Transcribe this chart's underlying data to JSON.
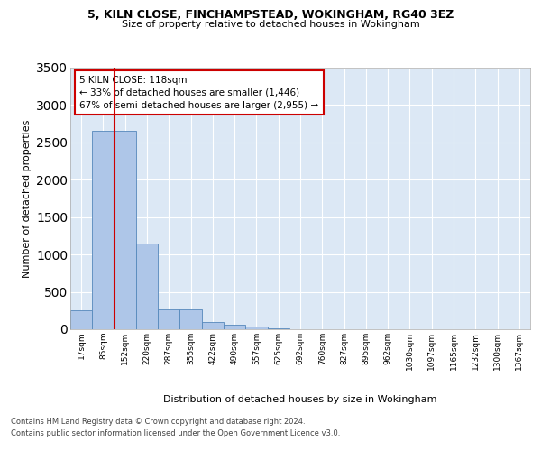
{
  "title1": "5, KILN CLOSE, FINCHAMPSTEAD, WOKINGHAM, RG40 3EZ",
  "title2": "Size of property relative to detached houses in Wokingham",
  "xlabel": "Distribution of detached houses by size in Wokingham",
  "ylabel": "Number of detached properties",
  "bar_labels": [
    "17sqm",
    "85sqm",
    "152sqm",
    "220sqm",
    "287sqm",
    "355sqm",
    "422sqm",
    "490sqm",
    "557sqm",
    "625sqm",
    "692sqm",
    "760sqm",
    "827sqm",
    "895sqm",
    "962sqm",
    "1030sqm",
    "1097sqm",
    "1165sqm",
    "1232sqm",
    "1300sqm",
    "1367sqm"
  ],
  "bar_heights": [
    250,
    2650,
    2650,
    1150,
    270,
    270,
    100,
    60,
    40,
    8,
    5,
    4,
    3,
    3,
    2,
    2,
    2,
    2,
    2,
    2,
    2
  ],
  "bar_color": "#aec6e8",
  "bar_edge_color": "#5588bb",
  "background_color": "#dce8f5",
  "grid_color": "#ffffff",
  "vline_color": "#cc0000",
  "annotation_line1": "5 KILN CLOSE: 118sqm",
  "annotation_line2": "← 33% of detached houses are smaller (1,446)",
  "annotation_line3": "67% of semi-detached houses are larger (2,955) →",
  "annotation_box_facecolor": "#ffffff",
  "annotation_box_edgecolor": "#cc0000",
  "ylim": [
    0,
    3500
  ],
  "yticks": [
    0,
    500,
    1000,
    1500,
    2000,
    2500,
    3000,
    3500
  ],
  "footer1": "Contains HM Land Registry data © Crown copyright and database right 2024.",
  "footer2": "Contains public sector information licensed under the Open Government Licence v3.0."
}
